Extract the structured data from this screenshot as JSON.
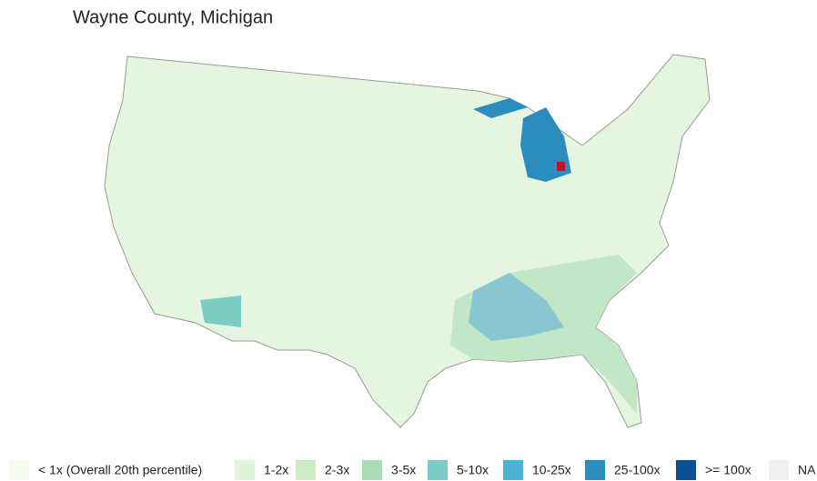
{
  "title": "Wayne County, Michigan",
  "legend": [
    {
      "label": "< 1x (Overall 20th percentile)",
      "color": "#f7fcf0"
    },
    {
      "label": "1-2x",
      "color": "#e0f3db"
    },
    {
      "label": "2-3x",
      "color": "#ccebc5"
    },
    {
      "label": "3-5x",
      "color": "#a8ddb5"
    },
    {
      "label": "5-10x",
      "color": "#7bccc4"
    },
    {
      "label": "10-25x",
      "color": "#4eb3d3"
    },
    {
      "label": "25-100x",
      "color": "#2b8cbe"
    },
    {
      "label": ">= 100x",
      "color": "#0b4f96"
    },
    {
      "label": "NA",
      "color": "#f0f0f0"
    }
  ]
}
